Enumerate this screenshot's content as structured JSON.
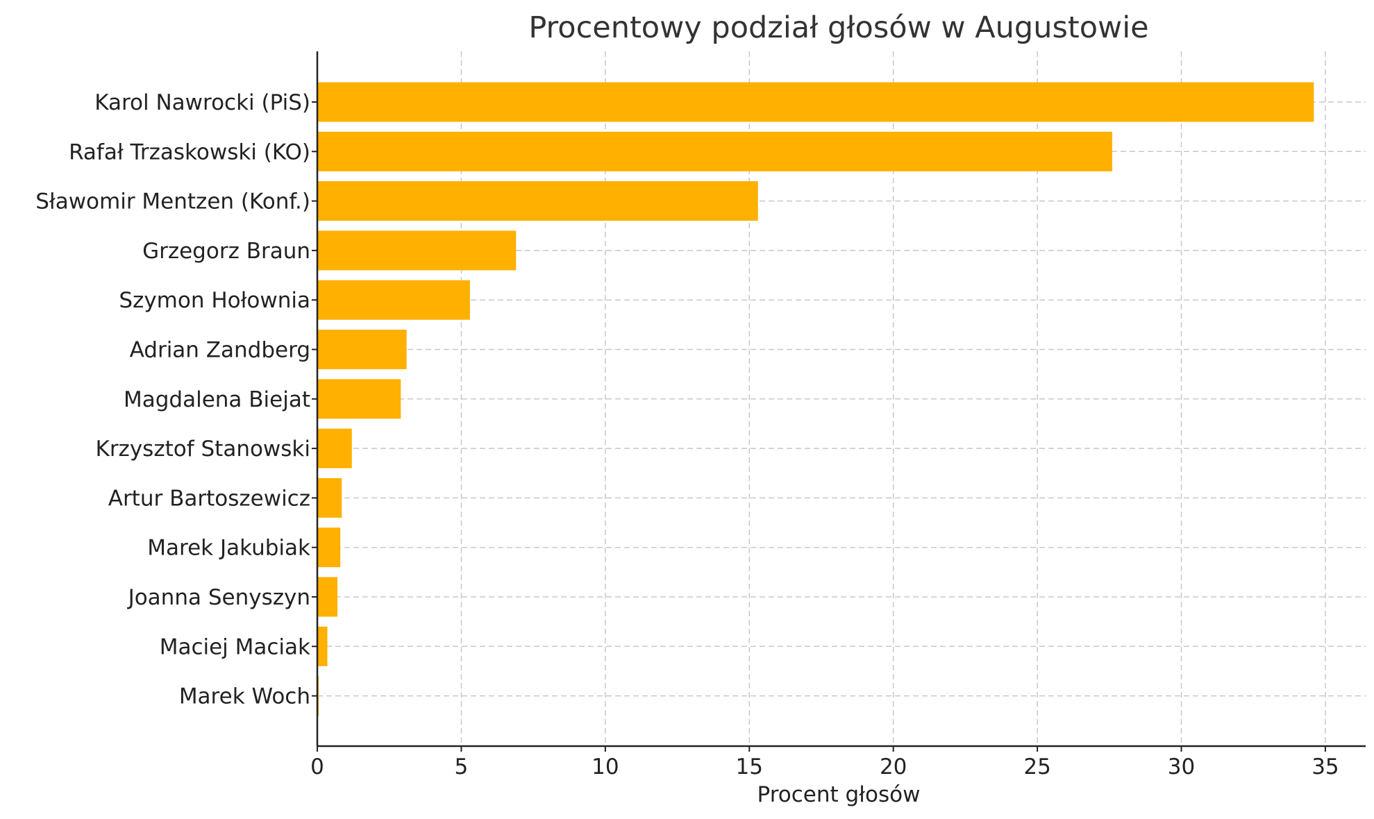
{
  "chart_data": {
    "type": "bar",
    "orientation": "horizontal",
    "title": "Procentowy podział głosów w Augustowie",
    "xlabel": "Procent głosów",
    "ylabel": "",
    "xlim": [
      0,
      36.4
    ],
    "x_ticks": [
      0,
      5,
      10,
      15,
      20,
      25,
      30,
      35
    ],
    "grid": true,
    "bar_color": "#ffb000",
    "categories": [
      "Karol Nawrocki (PiS)",
      "Rafał Trzaskowski (KO)",
      "Sławomir Mentzen (Konf.)",
      "Grzegorz Braun",
      "Szymon Hołownia",
      "Adrian Zandberg",
      "Magdalena Biejat",
      "Krzysztof Stanowski",
      "Artur Bartoszewicz",
      "Marek Jakubiak",
      "Joanna Senyszyn",
      "Maciej Maciak",
      "Marek Woch"
    ],
    "values": [
      34.6,
      27.6,
      15.3,
      6.9,
      5.3,
      3.1,
      2.9,
      1.2,
      0.85,
      0.8,
      0.7,
      0.35,
      0.05
    ]
  }
}
